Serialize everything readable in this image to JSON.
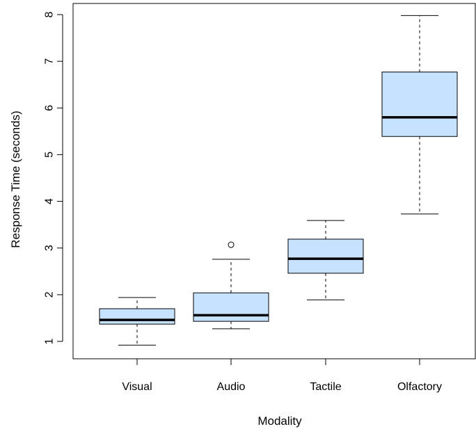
{
  "chart_data": {
    "type": "boxplot",
    "title": "",
    "xlabel": "Modality",
    "ylabel": "Response Time (seconds)",
    "ylim": [
      0.6,
      8.2
    ],
    "yticks": [
      1,
      2,
      3,
      4,
      5,
      6,
      7,
      8
    ],
    "grid": false,
    "box_fill": "#c6e2ff",
    "categories": [
      "Visual",
      "Audio",
      "Tactile",
      "Olfactory"
    ],
    "boxes": [
      {
        "category": "Visual",
        "whisker_low": 0.92,
        "q1": 1.37,
        "median": 1.46,
        "q3": 1.7,
        "whisker_high": 1.94,
        "outliers": []
      },
      {
        "category": "Audio",
        "whisker_low": 1.27,
        "q1": 1.43,
        "median": 1.56,
        "q3": 2.04,
        "whisker_high": 2.76,
        "outliers": [
          3.07
        ]
      },
      {
        "category": "Tactile",
        "whisker_low": 1.89,
        "q1": 2.46,
        "median": 2.77,
        "q3": 3.19,
        "whisker_high": 3.59,
        "outliers": []
      },
      {
        "category": "Olfactory",
        "whisker_low": 3.73,
        "q1": 5.39,
        "median": 5.8,
        "q3": 6.77,
        "whisker_high": 7.98,
        "outliers": []
      }
    ]
  }
}
